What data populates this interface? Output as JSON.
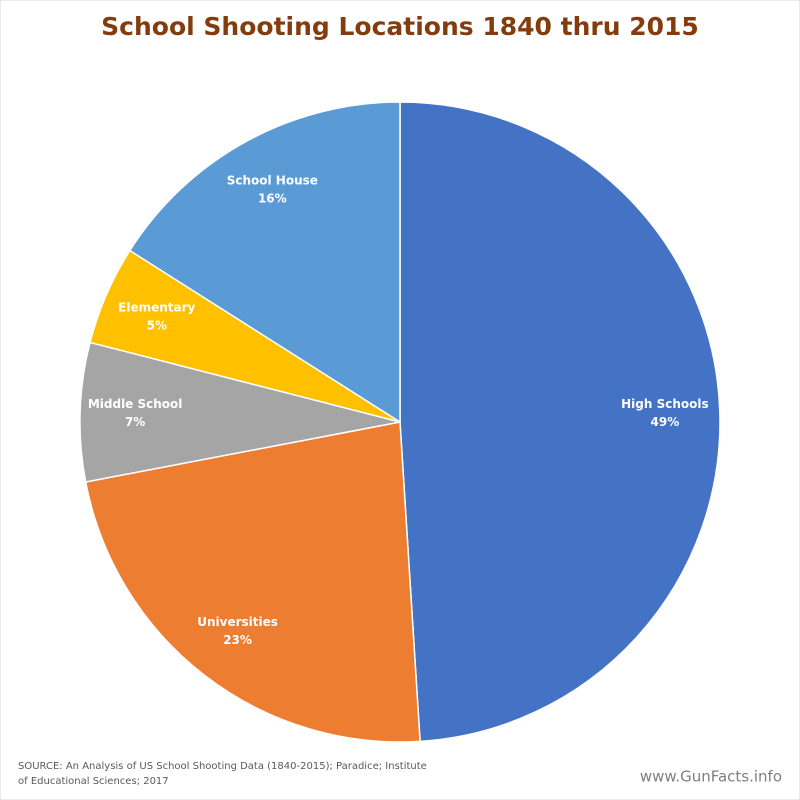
{
  "chart_data": {
    "type": "pie",
    "title": "School Shooting Locations 1840 thru 2015",
    "categories": [
      "High Schools",
      "Universities",
      "Middle School",
      "Elementary",
      "School House"
    ],
    "values": [
      49,
      23,
      7,
      5,
      16
    ],
    "value_labels": [
      "49%",
      "23%",
      "7%",
      "5%",
      "16%"
    ],
    "colors": [
      "#4472c4",
      "#ed7d31",
      "#a5a5a5",
      "#ffc000",
      "#5b9bd5"
    ],
    "source": [
      "SOURCE: An Analysis of US School Shooting  Data (1840-2015); Paradice; Institute",
      "of Educational Sciences; 2017"
    ],
    "watermark": "www.GunFacts.info"
  }
}
